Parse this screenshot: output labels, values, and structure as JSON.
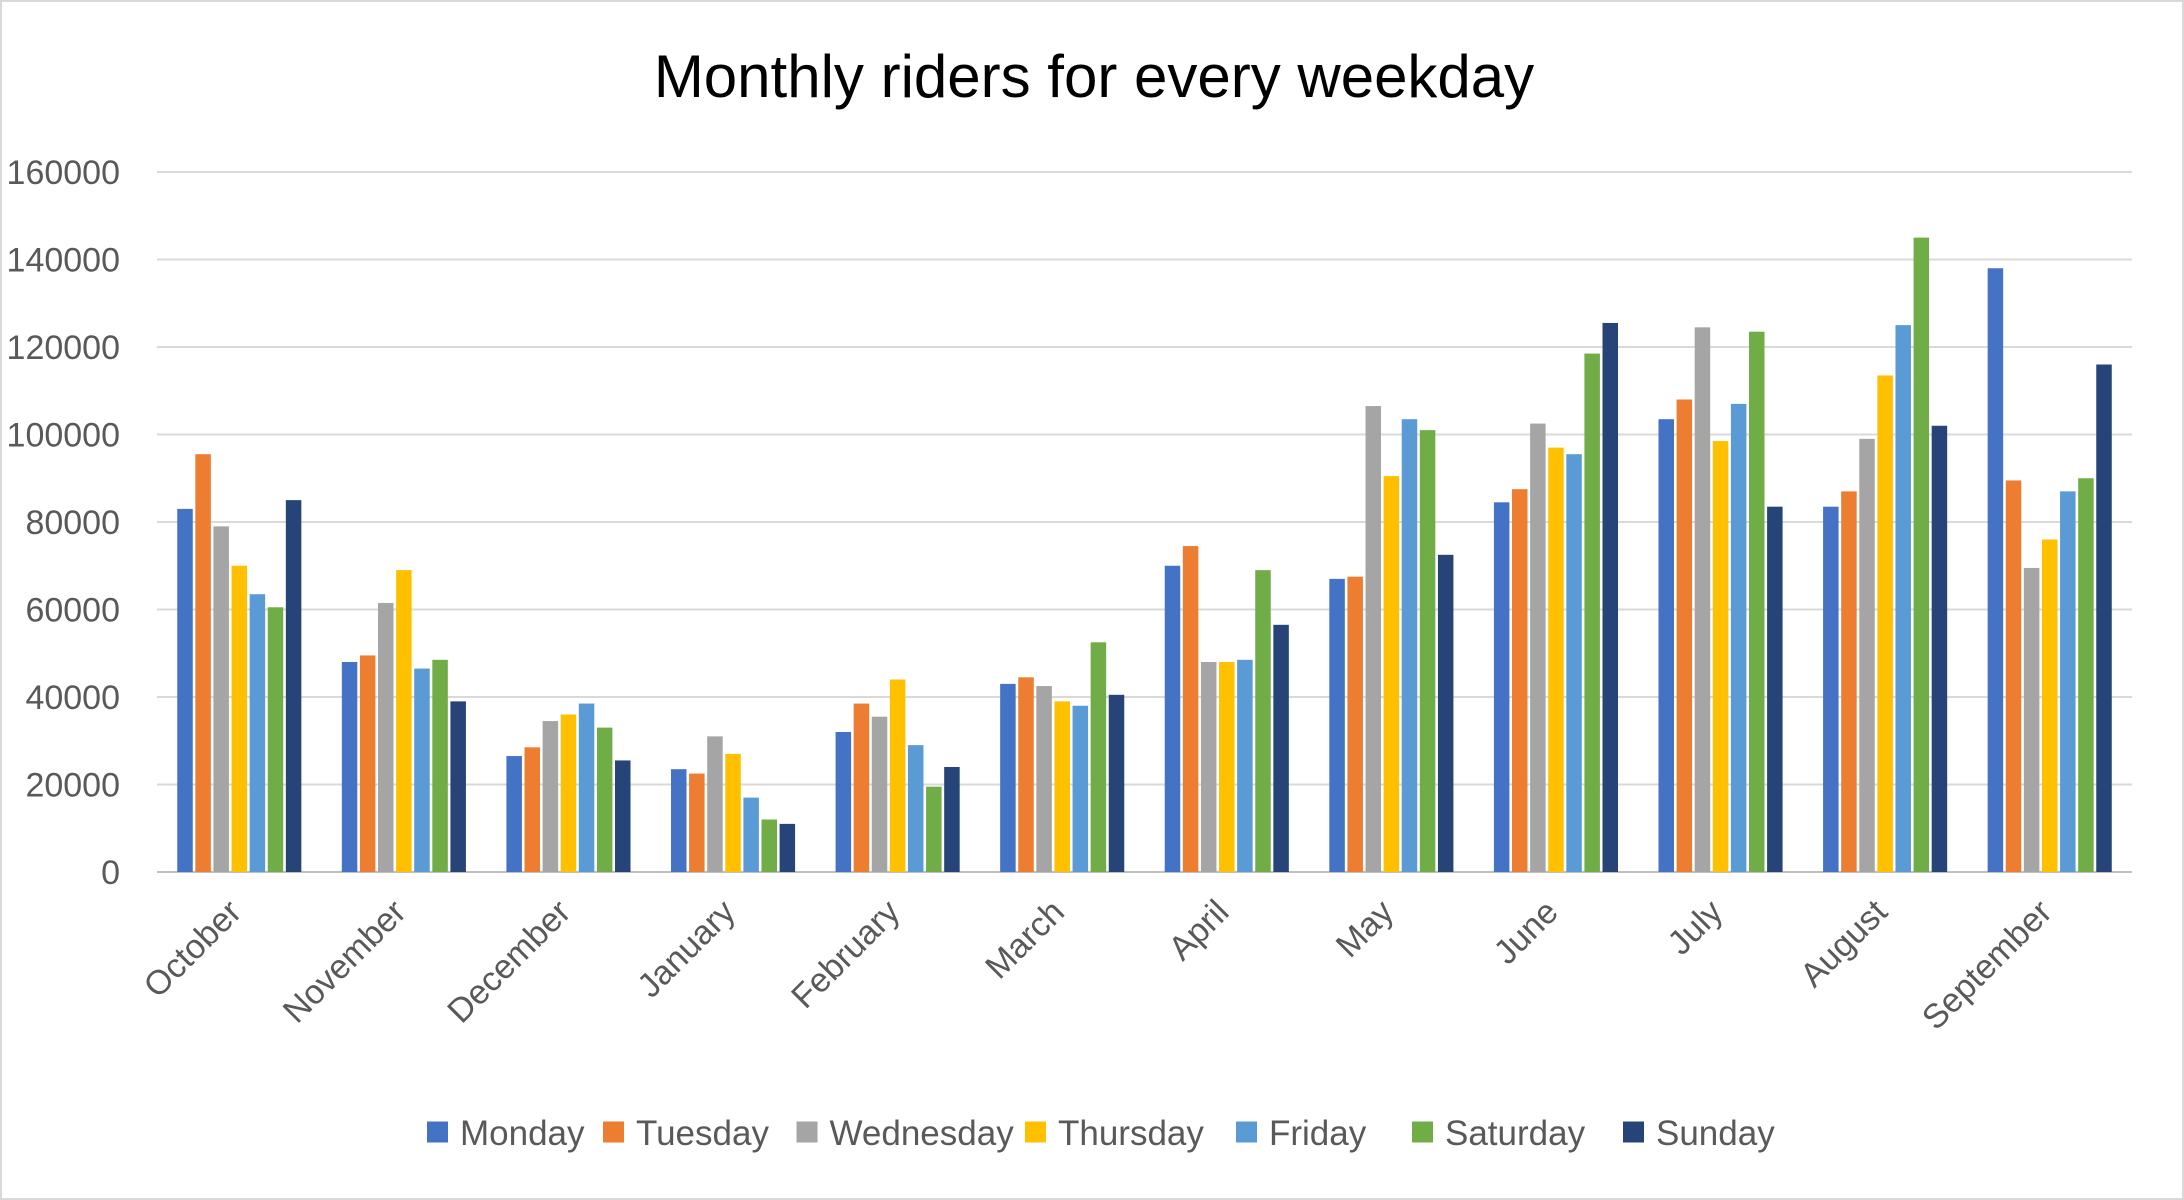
{
  "chart_data": {
    "type": "bar",
    "title": "Monthly riders for every weekday",
    "xlabel": "",
    "ylabel": "",
    "ylim": [
      0,
      160000
    ],
    "yticks": [
      0,
      20000,
      40000,
      60000,
      80000,
      100000,
      120000,
      140000,
      160000
    ],
    "grid": true,
    "legend_position": "bottom",
    "categories": [
      "October",
      "November",
      "December",
      "January",
      "February",
      "March",
      "April",
      "May",
      "June",
      "July",
      "August",
      "September"
    ],
    "series": [
      {
        "name": "Monday",
        "color": "#4472c4",
        "values": [
          83000,
          48000,
          26500,
          23500,
          32000,
          43000,
          70000,
          67000,
          84500,
          103500,
          83500,
          138000
        ]
      },
      {
        "name": "Tuesday",
        "color": "#ed7d31",
        "values": [
          95500,
          49500,
          28500,
          22500,
          38500,
          44500,
          74500,
          67500,
          87500,
          108000,
          87000,
          89500
        ]
      },
      {
        "name": "Wednesday",
        "color": "#a5a5a5",
        "values": [
          79000,
          61500,
          34500,
          31000,
          35500,
          42500,
          48000,
          106500,
          102500,
          124500,
          99000,
          69500
        ]
      },
      {
        "name": "Thursday",
        "color": "#ffc000",
        "values": [
          70000,
          69000,
          36000,
          27000,
          44000,
          39000,
          48000,
          90500,
          97000,
          98500,
          113500,
          76000
        ]
      },
      {
        "name": "Friday",
        "color": "#5b9bd5",
        "values": [
          63500,
          46500,
          38500,
          17000,
          29000,
          38000,
          48500,
          103500,
          95500,
          107000,
          125000,
          87000
        ]
      },
      {
        "name": "Saturday",
        "color": "#70ad47",
        "values": [
          60500,
          48500,
          33000,
          12000,
          19500,
          52500,
          69000,
          101000,
          118500,
          123500,
          145000,
          90000
        ]
      },
      {
        "name": "Sunday",
        "color": "#264478",
        "values": [
          85000,
          39000,
          25500,
          11000,
          24000,
          40500,
          56500,
          72500,
          125500,
          83500,
          102000,
          116000
        ]
      }
    ]
  }
}
